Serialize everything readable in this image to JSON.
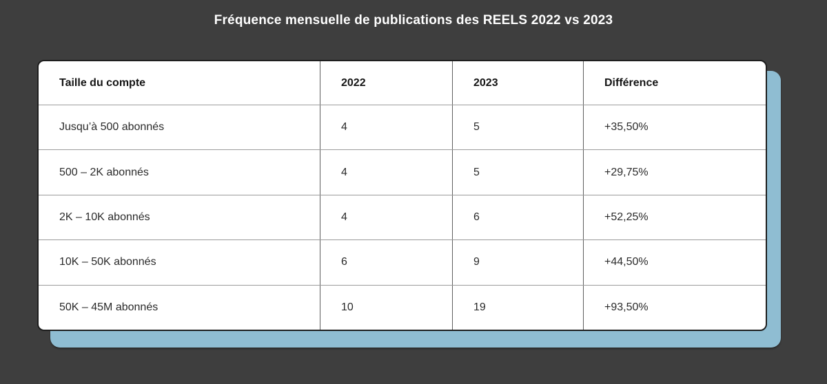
{
  "page": {
    "title": "Fréquence mensuelle de publications des REELS 2022 vs 2023",
    "background_color": "#3e3e3e",
    "accent_color": "#8fbdd2",
    "card_color": "#ffffff"
  },
  "table": {
    "columns": [
      "Taille du compte",
      "2022",
      "2023",
      "Différence"
    ],
    "rows": [
      {
        "size": "Jusqu’à 500 abonnés",
        "y2022": "4",
        "y2023": "5",
        "diff": "+35,50%"
      },
      {
        "size": "500 – 2K abonnés",
        "y2022": "4",
        "y2023": "5",
        "diff": "+29,75%"
      },
      {
        "size": "2K – 10K abonnés",
        "y2022": "4",
        "y2023": "6",
        "diff": "+52,25%"
      },
      {
        "size": "10K – 50K abonnés",
        "y2022": "6",
        "y2023": "9",
        "diff": "+44,50%"
      },
      {
        "size": "50K – 45M abonnés",
        "y2022": "10",
        "y2023": "19",
        "diff": "+93,50%"
      }
    ]
  },
  "chart_data": {
    "type": "table",
    "title": "Fréquence mensuelle de publications des REELS 2022 vs 2023",
    "columns": [
      "Taille du compte",
      "2022",
      "2023",
      "Différence"
    ],
    "categories": [
      "Jusqu’à 500 abonnés",
      "500 – 2K abonnés",
      "2K – 10K abonnés",
      "10K – 50K abonnés",
      "50K – 45M abonnés"
    ],
    "series": [
      {
        "name": "2022",
        "values": [
          4,
          4,
          4,
          6,
          10
        ]
      },
      {
        "name": "2023",
        "values": [
          5,
          5,
          6,
          9,
          19
        ]
      },
      {
        "name": "Différence",
        "values": [
          "+35,50%",
          "+29,75%",
          "+52,25%",
          "+44,50%",
          "+93,50%"
        ]
      }
    ]
  }
}
